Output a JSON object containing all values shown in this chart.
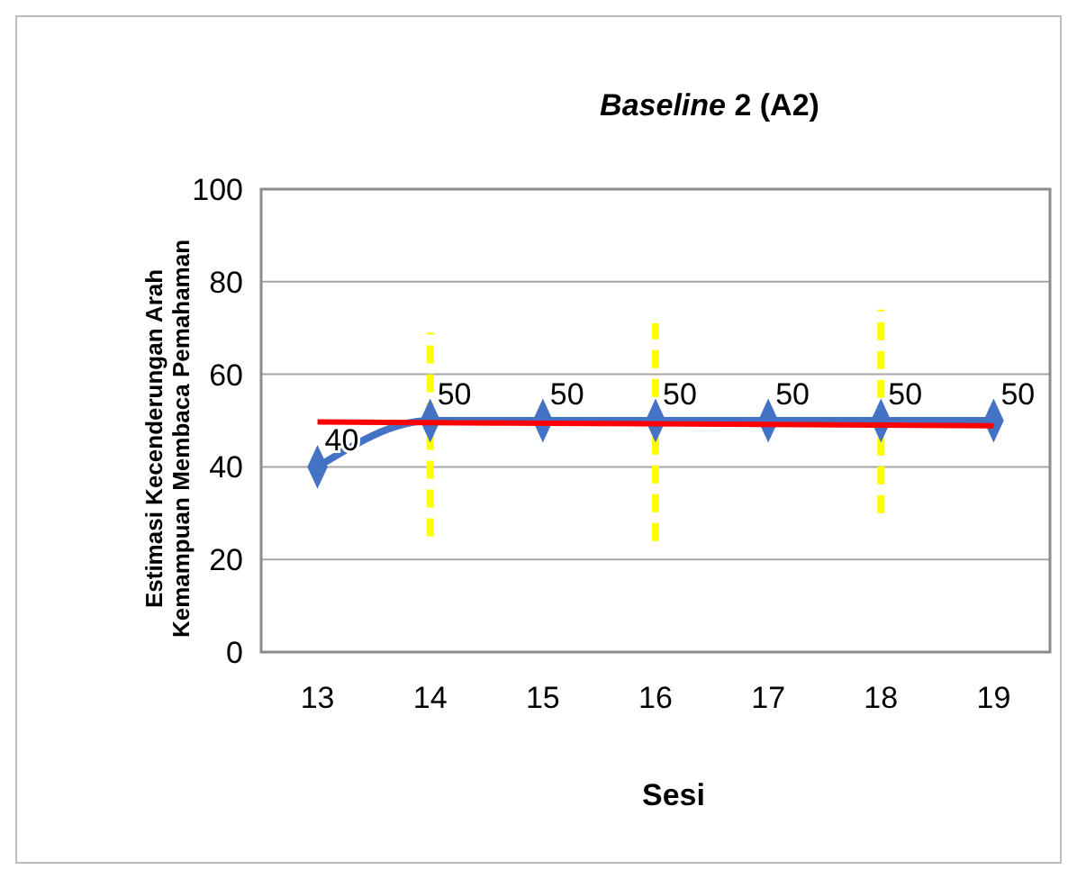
{
  "chart_data": {
    "type": "line",
    "title": "Baseline 2 (A2)",
    "xlabel": "Sesi",
    "ylabel": "Estimasi Kecenderungan Arah\nKemampuan Membaca Pemahaman",
    "x": [
      13,
      14,
      15,
      16,
      17,
      18,
      19
    ],
    "xlim": [
      12.5,
      19.5
    ],
    "xticks": [
      13,
      14,
      15,
      16,
      17,
      18,
      19
    ],
    "ylim": [
      0,
      100
    ],
    "yticks": [
      0,
      20,
      40,
      60,
      80,
      100
    ],
    "grid": "y",
    "series": [
      {
        "type": "line",
        "x": [
          14,
          14
        ],
        "values": [
          25,
          69
        ],
        "color": "#ffff00",
        "line_style": "dashed",
        "marker": "none"
      },
      {
        "type": "line",
        "x": [
          16,
          16
        ],
        "values": [
          24,
          71
        ],
        "color": "#ffff00",
        "line_style": "dashed",
        "marker": "none"
      },
      {
        "type": "line",
        "x": [
          18,
          18
        ],
        "values": [
          30,
          74
        ],
        "color": "#ffff00",
        "line_style": "dashed",
        "marker": "none"
      },
      {
        "type": "line",
        "values": [
          40,
          50,
          50,
          50,
          50,
          50,
          50
        ],
        "color": "#4472c4",
        "marker": "diamond",
        "line_style": "solid",
        "value_labels": [
          "40",
          "50",
          "50",
          "50",
          "50",
          "50",
          "50"
        ]
      },
      {
        "type": "line",
        "x": [
          13,
          19
        ],
        "values": [
          49.7,
          48.9
        ],
        "color": "#ff0000",
        "marker": "none",
        "line_style": "solid"
      }
    ]
  }
}
